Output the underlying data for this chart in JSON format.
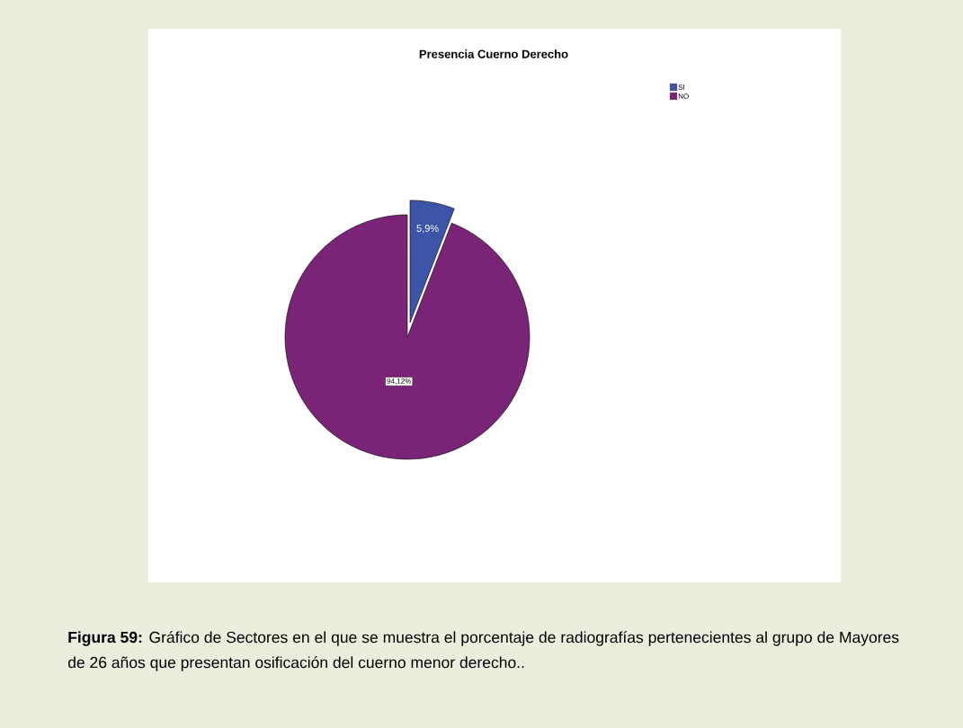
{
  "chart_data": {
    "type": "pie",
    "title": "Presencia Cuerno Derecho",
    "categories": [
      "SI",
      "NO"
    ],
    "values": [
      5.9,
      94.12
    ],
    "colors": [
      "#3c55a8",
      "#7a2478"
    ],
    "value_labels": [
      "5,9%",
      "94,12%"
    ],
    "legend": "top right",
    "annotations": [
      "**Figura 59:** Gráfico de Sectores en el que se muestra el porcentaje de radiografías pertenecientes al grupo de Mayores de 26 años que presentan osificación del cuerno menor derecho.."
    ]
  }
}
